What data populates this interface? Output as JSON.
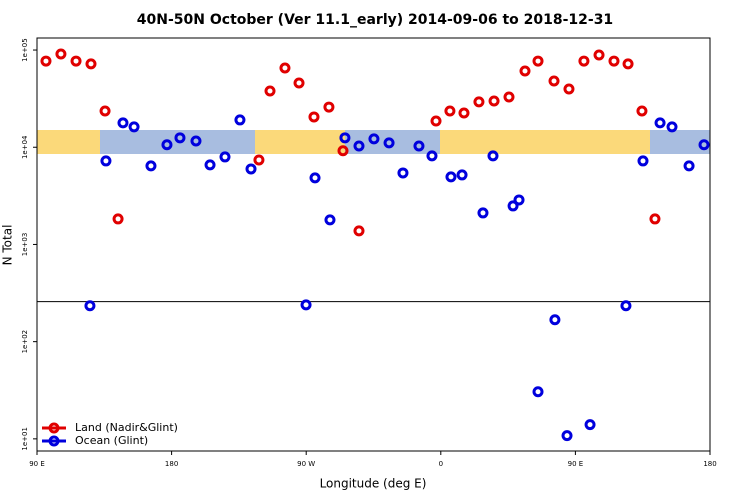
{
  "chart_data": {
    "type": "scatter",
    "title": "40N-50N October (Ver 11.1_early)   2014-09-06 to 2018-12-31",
    "x_label": "Longitude (deg E)",
    "y_label": "N Total",
    "xlim": [
      90,
      540
    ],
    "xticks": [
      {
        "value": 90,
        "label": "90 E"
      },
      {
        "value": 180,
        "label": "180"
      },
      {
        "value": 270,
        "label": "90 W"
      },
      {
        "value": 360,
        "label": "0"
      },
      {
        "value": 450,
        "label": "90 E"
      },
      {
        "value": 540,
        "label": "180"
      }
    ],
    "ylim": [
      7.5,
      133000
    ],
    "log_y": true,
    "yticks": [
      {
        "value": 10,
        "label": "1e+01"
      },
      {
        "value": 100,
        "label": "1e+02"
      },
      {
        "value": 1000,
        "label": "1e+03"
      },
      {
        "value": 10000,
        "label": "1e+04"
      },
      {
        "value": 100000,
        "label": "1e+05"
      }
    ],
    "hline": 258,
    "legend": "bottom-left",
    "series": [
      {
        "name": "Land (Nadir&Glint)",
        "color": "#e00000",
        "x": [
          96.0,
          106.0,
          116.1,
          126.1,
          135.5,
          144.2,
          238.4,
          245.8,
          255.8,
          265.2,
          275.2,
          285.2,
          294.6,
          305.3,
          356.8,
          366.1,
          375.5,
          385.5,
          395.6,
          405.6,
          416.3,
          425.0,
          435.7,
          445.7,
          455.7,
          465.8,
          475.8,
          485.2,
          494.5,
          503.2
        ],
        "values": [
          77000,
          91000,
          77000,
          72000,
          23600,
          1830,
          7400,
          37900,
          65300,
          45800,
          20500,
          25900,
          9200,
          1380,
          18600,
          23600,
          22500,
          29300,
          29900,
          32900,
          60800,
          77000,
          48000,
          39700,
          77000,
          88900,
          77000,
          72000,
          23600,
          1830
        ]
      },
      {
        "name": "Ocean (Glint)",
        "color": "#0000dd",
        "x": [
          125.4,
          136.1,
          147.5,
          154.9,
          166.2,
          176.9,
          185.6,
          196.3,
          205.7,
          215.7,
          225.7,
          233.1,
          269.9,
          275.9,
          285.9,
          295.9,
          305.3,
          315.3,
          325.4,
          334.7,
          345.4,
          354.1,
          366.8,
          374.2,
          388.2,
          394.9,
          408.3,
          412.3,
          425.0,
          436.3,
          444.4,
          459.8,
          483.8,
          495.2,
          506.6,
          514.6,
          526.0,
          536.0
        ],
        "values": [
          234,
          7230,
          17800,
          16200,
          6430,
          10600,
          12500,
          11600,
          6580,
          7950,
          19100,
          5980,
          239,
          4840,
          1790,
          12500,
          10300,
          12200,
          11100,
          5440,
          10300,
          8150,
          4960,
          5190,
          2110,
          8150,
          2490,
          2870,
          30.5,
          168,
          10.8,
          14.0,
          234,
          7230,
          17800,
          16200,
          6430,
          10600
        ]
      }
    ]
  }
}
